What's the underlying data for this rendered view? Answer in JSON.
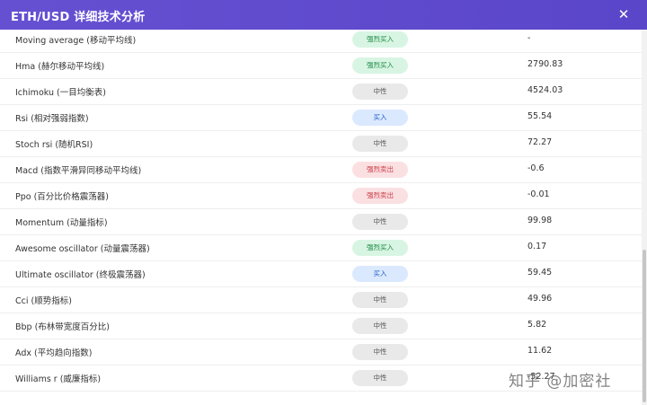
{
  "modal": {
    "title": "ETH/USD 详细技术分析",
    "close_label": "✕"
  },
  "indicators": [
    {
      "name": "Moving average (移动平均线)",
      "signal": "强烈买入",
      "signal_type": "strong-buy",
      "value": "-"
    },
    {
      "name": "Hma (赫尔移动平均线)",
      "signal": "强烈买入",
      "signal_type": "strong-buy",
      "value": "2790.83"
    },
    {
      "name": "Ichimoku (一目均衡表)",
      "signal": "中性",
      "signal_type": "neutral",
      "value": "4524.03"
    },
    {
      "name": "Rsi (相对强弱指数)",
      "signal": "买入",
      "signal_type": "buy",
      "value": "55.54"
    },
    {
      "name": "Stoch rsi (随机RSI)",
      "signal": "中性",
      "signal_type": "neutral",
      "value": "72.27"
    },
    {
      "name": "Macd (指数平滑异同移动平均线)",
      "signal": "强烈卖出",
      "signal_type": "strong-sell",
      "value": "-0.6"
    },
    {
      "name": "Ppo (百分比价格震荡器)",
      "signal": "强烈卖出",
      "signal_type": "strong-sell",
      "value": "-0.01"
    },
    {
      "name": "Momentum (动量指标)",
      "signal": "中性",
      "signal_type": "neutral",
      "value": "99.98"
    },
    {
      "name": "Awesome oscillator (动量震荡器)",
      "signal": "强烈买入",
      "signal_type": "strong-buy",
      "value": "0.17"
    },
    {
      "name": "Ultimate oscillator (终极震荡器)",
      "signal": "买入",
      "signal_type": "buy",
      "value": "59.45"
    },
    {
      "name": "Cci (顺势指标)",
      "signal": "中性",
      "signal_type": "neutral",
      "value": "49.96"
    },
    {
      "name": "Bbp (布林带宽度百分比)",
      "signal": "中性",
      "signal_type": "neutral",
      "value": "5.82"
    },
    {
      "name": "Adx (平均趋向指数)",
      "signal": "中性",
      "signal_type": "neutral",
      "value": "11.62"
    },
    {
      "name": "Williams r (威廉指标)",
      "signal": "中性",
      "signal_type": "neutral",
      "value": "-52.27"
    }
  ],
  "watermark": "知乎 @加密社",
  "colors": {
    "header_bg": "#6650d2",
    "strong_buy": "#1f8a47",
    "buy": "#2a62c9",
    "neutral": "#555555",
    "strong_sell": "#c83b45"
  },
  "icons": {
    "close": "close-icon"
  }
}
